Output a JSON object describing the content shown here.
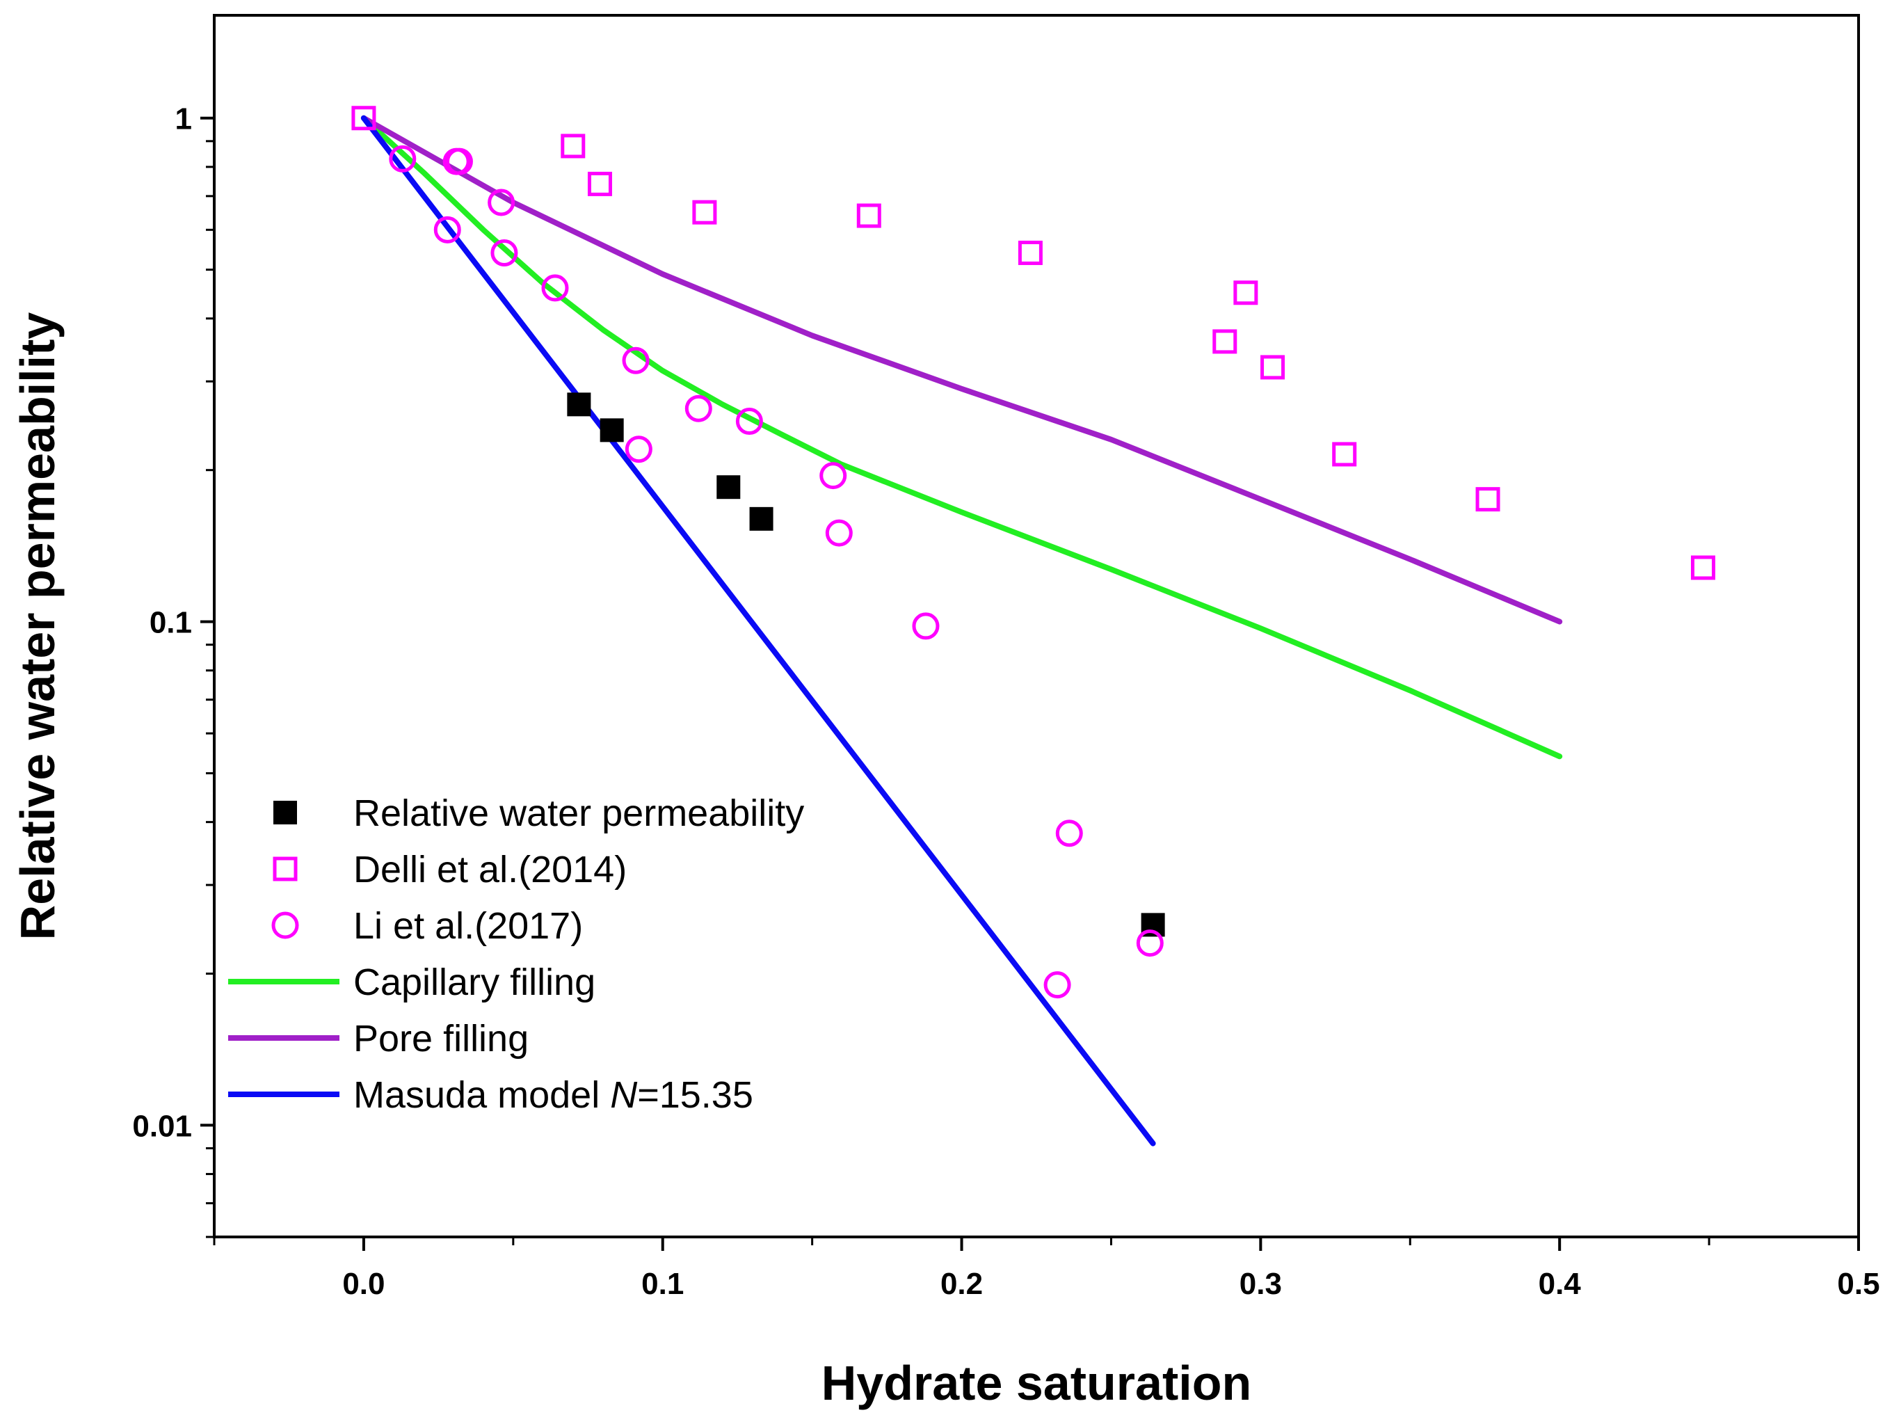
{
  "chart_data": {
    "type": "scatter",
    "xlabel": "Hydrate saturation",
    "ylabel": "Relative water permeability",
    "xlim": [
      -0.05,
      0.5
    ],
    "ylim": [
      0.006,
      1.6
    ],
    "yscale": "log",
    "x_ticks": [
      {
        "value": 0.0,
        "label": "0.0"
      },
      {
        "value": 0.1,
        "label": "0.1"
      },
      {
        "value": 0.2,
        "label": "0.2"
      },
      {
        "value": 0.3,
        "label": "0.3"
      },
      {
        "value": 0.4,
        "label": "0.4"
      },
      {
        "value": 0.5,
        "label": "0.5"
      }
    ],
    "y_ticks": [
      {
        "value": 1,
        "label": "1"
      },
      {
        "value": 0.1,
        "label": "0.1"
      },
      {
        "value": 0.01,
        "label": "0.01"
      }
    ],
    "legend_position": "bottom-left",
    "series": [
      {
        "name": "Relative water permeability",
        "kind": "scatter",
        "marker": "filled-square",
        "color": "#000000",
        "points": [
          [
            0.072,
            0.27
          ],
          [
            0.083,
            0.24
          ],
          [
            0.122,
            0.185
          ],
          [
            0.133,
            0.16
          ],
          [
            0.264,
            0.025
          ]
        ]
      },
      {
        "name": "Delli et al.(2014)",
        "kind": "scatter",
        "marker": "open-square",
        "color": "#ff00ff",
        "points": [
          [
            0.0,
            1.0
          ],
          [
            0.07,
            0.88
          ],
          [
            0.079,
            0.74
          ],
          [
            0.114,
            0.65
          ],
          [
            0.169,
            0.64
          ],
          [
            0.223,
            0.54
          ],
          [
            0.288,
            0.36
          ],
          [
            0.295,
            0.45
          ],
          [
            0.304,
            0.32
          ],
          [
            0.328,
            0.215
          ],
          [
            0.376,
            0.175
          ],
          [
            0.448,
            0.128
          ]
        ]
      },
      {
        "name": "Li et al.(2017)",
        "kind": "scatter",
        "marker": "open-circle",
        "color": "#ff00ff",
        "points": [
          [
            0.013,
            0.83
          ],
          [
            0.031,
            0.82
          ],
          [
            0.032,
            0.82
          ],
          [
            0.028,
            0.6
          ],
          [
            0.046,
            0.68
          ],
          [
            0.047,
            0.54
          ],
          [
            0.064,
            0.46
          ],
          [
            0.091,
            0.33
          ],
          [
            0.092,
            0.22
          ],
          [
            0.112,
            0.265
          ],
          [
            0.129,
            0.25
          ],
          [
            0.157,
            0.195
          ],
          [
            0.159,
            0.15
          ],
          [
            0.188,
            0.098
          ],
          [
            0.232,
            0.019
          ],
          [
            0.236,
            0.038
          ],
          [
            0.263,
            0.023
          ]
        ]
      },
      {
        "name": "Capillary filling",
        "kind": "line",
        "color": "#22ee22",
        "points": [
          [
            0.0,
            1.0
          ],
          [
            0.02,
            0.78
          ],
          [
            0.04,
            0.6
          ],
          [
            0.06,
            0.47
          ],
          [
            0.08,
            0.38
          ],
          [
            0.1,
            0.315
          ],
          [
            0.12,
            0.27
          ],
          [
            0.14,
            0.235
          ],
          [
            0.16,
            0.205
          ],
          [
            0.2,
            0.165
          ],
          [
            0.25,
            0.127
          ],
          [
            0.3,
            0.097
          ],
          [
            0.35,
            0.073
          ],
          [
            0.4,
            0.054
          ]
        ]
      },
      {
        "name": "Pore filling",
        "kind": "line",
        "color": "#a020c8",
        "points": [
          [
            0.0,
            1.0
          ],
          [
            0.05,
            0.68
          ],
          [
            0.1,
            0.49
          ],
          [
            0.15,
            0.37
          ],
          [
            0.2,
            0.29
          ],
          [
            0.25,
            0.23
          ],
          [
            0.3,
            0.175
          ],
          [
            0.35,
            0.133
          ],
          [
            0.4,
            0.1
          ]
        ]
      },
      {
        "name": "Masuda model ",
        "name_italic": "N",
        "name_suffix": "=15.35",
        "kind": "line",
        "color": "#0a0af5",
        "points": [
          [
            0.0,
            1.0
          ],
          [
            0.264,
            0.0092
          ]
        ]
      }
    ]
  }
}
